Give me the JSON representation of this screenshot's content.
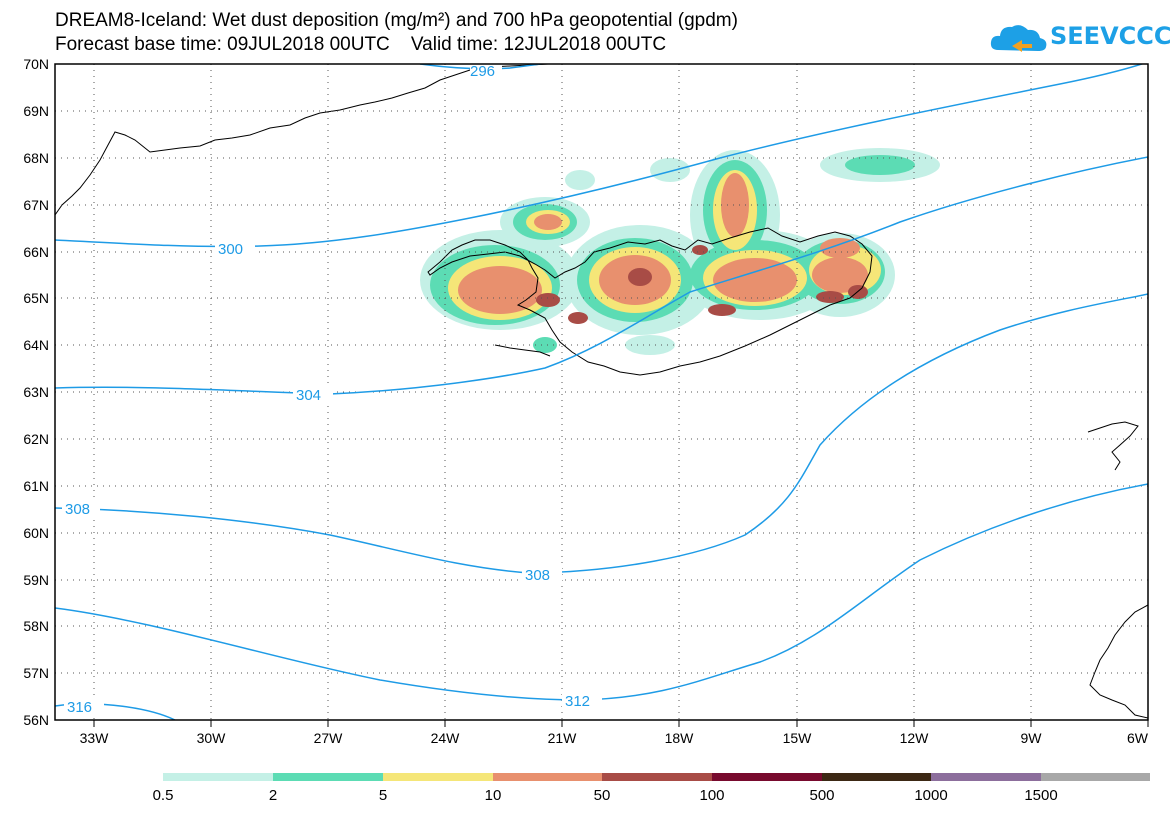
{
  "header": {
    "title_line1": "DREAM8-Iceland: Wet dust deposition (mg/m²) and 700 hPa geopotential (gpdm)",
    "title_line2": "Forecast base time: 09JUL2018 00UTC    Valid time: 12JUL2018 00UTC"
  },
  "logo": {
    "text": "SEEVCCC",
    "icon": "cloud-arrow-icon",
    "color": "#1da0e6"
  },
  "map": {
    "lat_labels": [
      "70N",
      "69N",
      "68N",
      "67N",
      "66N",
      "65N",
      "64N",
      "63N",
      "62N",
      "61N",
      "60N",
      "59N",
      "58N",
      "57N",
      "56N"
    ],
    "lon_labels": [
      "33W",
      "30W",
      "27W",
      "24W",
      "21W",
      "18W",
      "15W",
      "12W",
      "9W",
      "6W"
    ],
    "contour_color": "#1e9be6",
    "contour_labels": [
      "300",
      "304",
      "308",
      "308",
      "312",
      "316",
      "296"
    ]
  },
  "colorbar": {
    "colors": [
      "#c4f0e6",
      "#5cdcb4",
      "#f5e678",
      "#e8906e",
      "#a84c46",
      "#780a2e",
      "#3c2814",
      "#8c6e9c",
      "#a8a8a8"
    ],
    "labels": [
      "0.5",
      "2",
      "5",
      "10",
      "50",
      "100",
      "500",
      "1000",
      "1500"
    ]
  }
}
